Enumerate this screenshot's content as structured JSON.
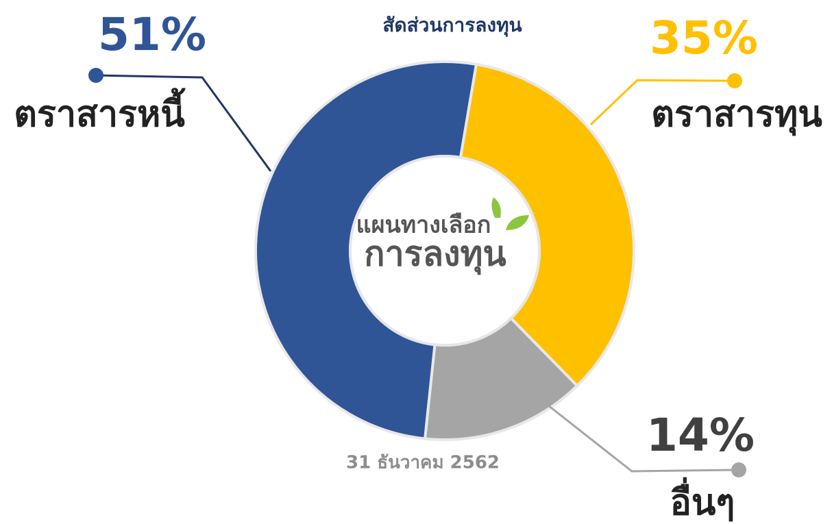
{
  "chart_data": {
    "type": "donut",
    "title": "สัดส่วนการลงทุน",
    "subtitle": "31 ธันวาคม 2562",
    "center_text": [
      "แผนทางเลือก",
      "การลงทุน"
    ],
    "categories": [
      "ตราสารหนี้",
      "ตราสารทุน",
      "อื่นๆ"
    ],
    "values": [
      51,
      35,
      14
    ],
    "value_labels": [
      "51%",
      "35%",
      "14%"
    ],
    "colors": [
      "#2f5597",
      "#ffc000",
      "#a5a5a5"
    ],
    "label_colors": [
      "#2f5597",
      "#ffc000",
      "#404040"
    ]
  }
}
